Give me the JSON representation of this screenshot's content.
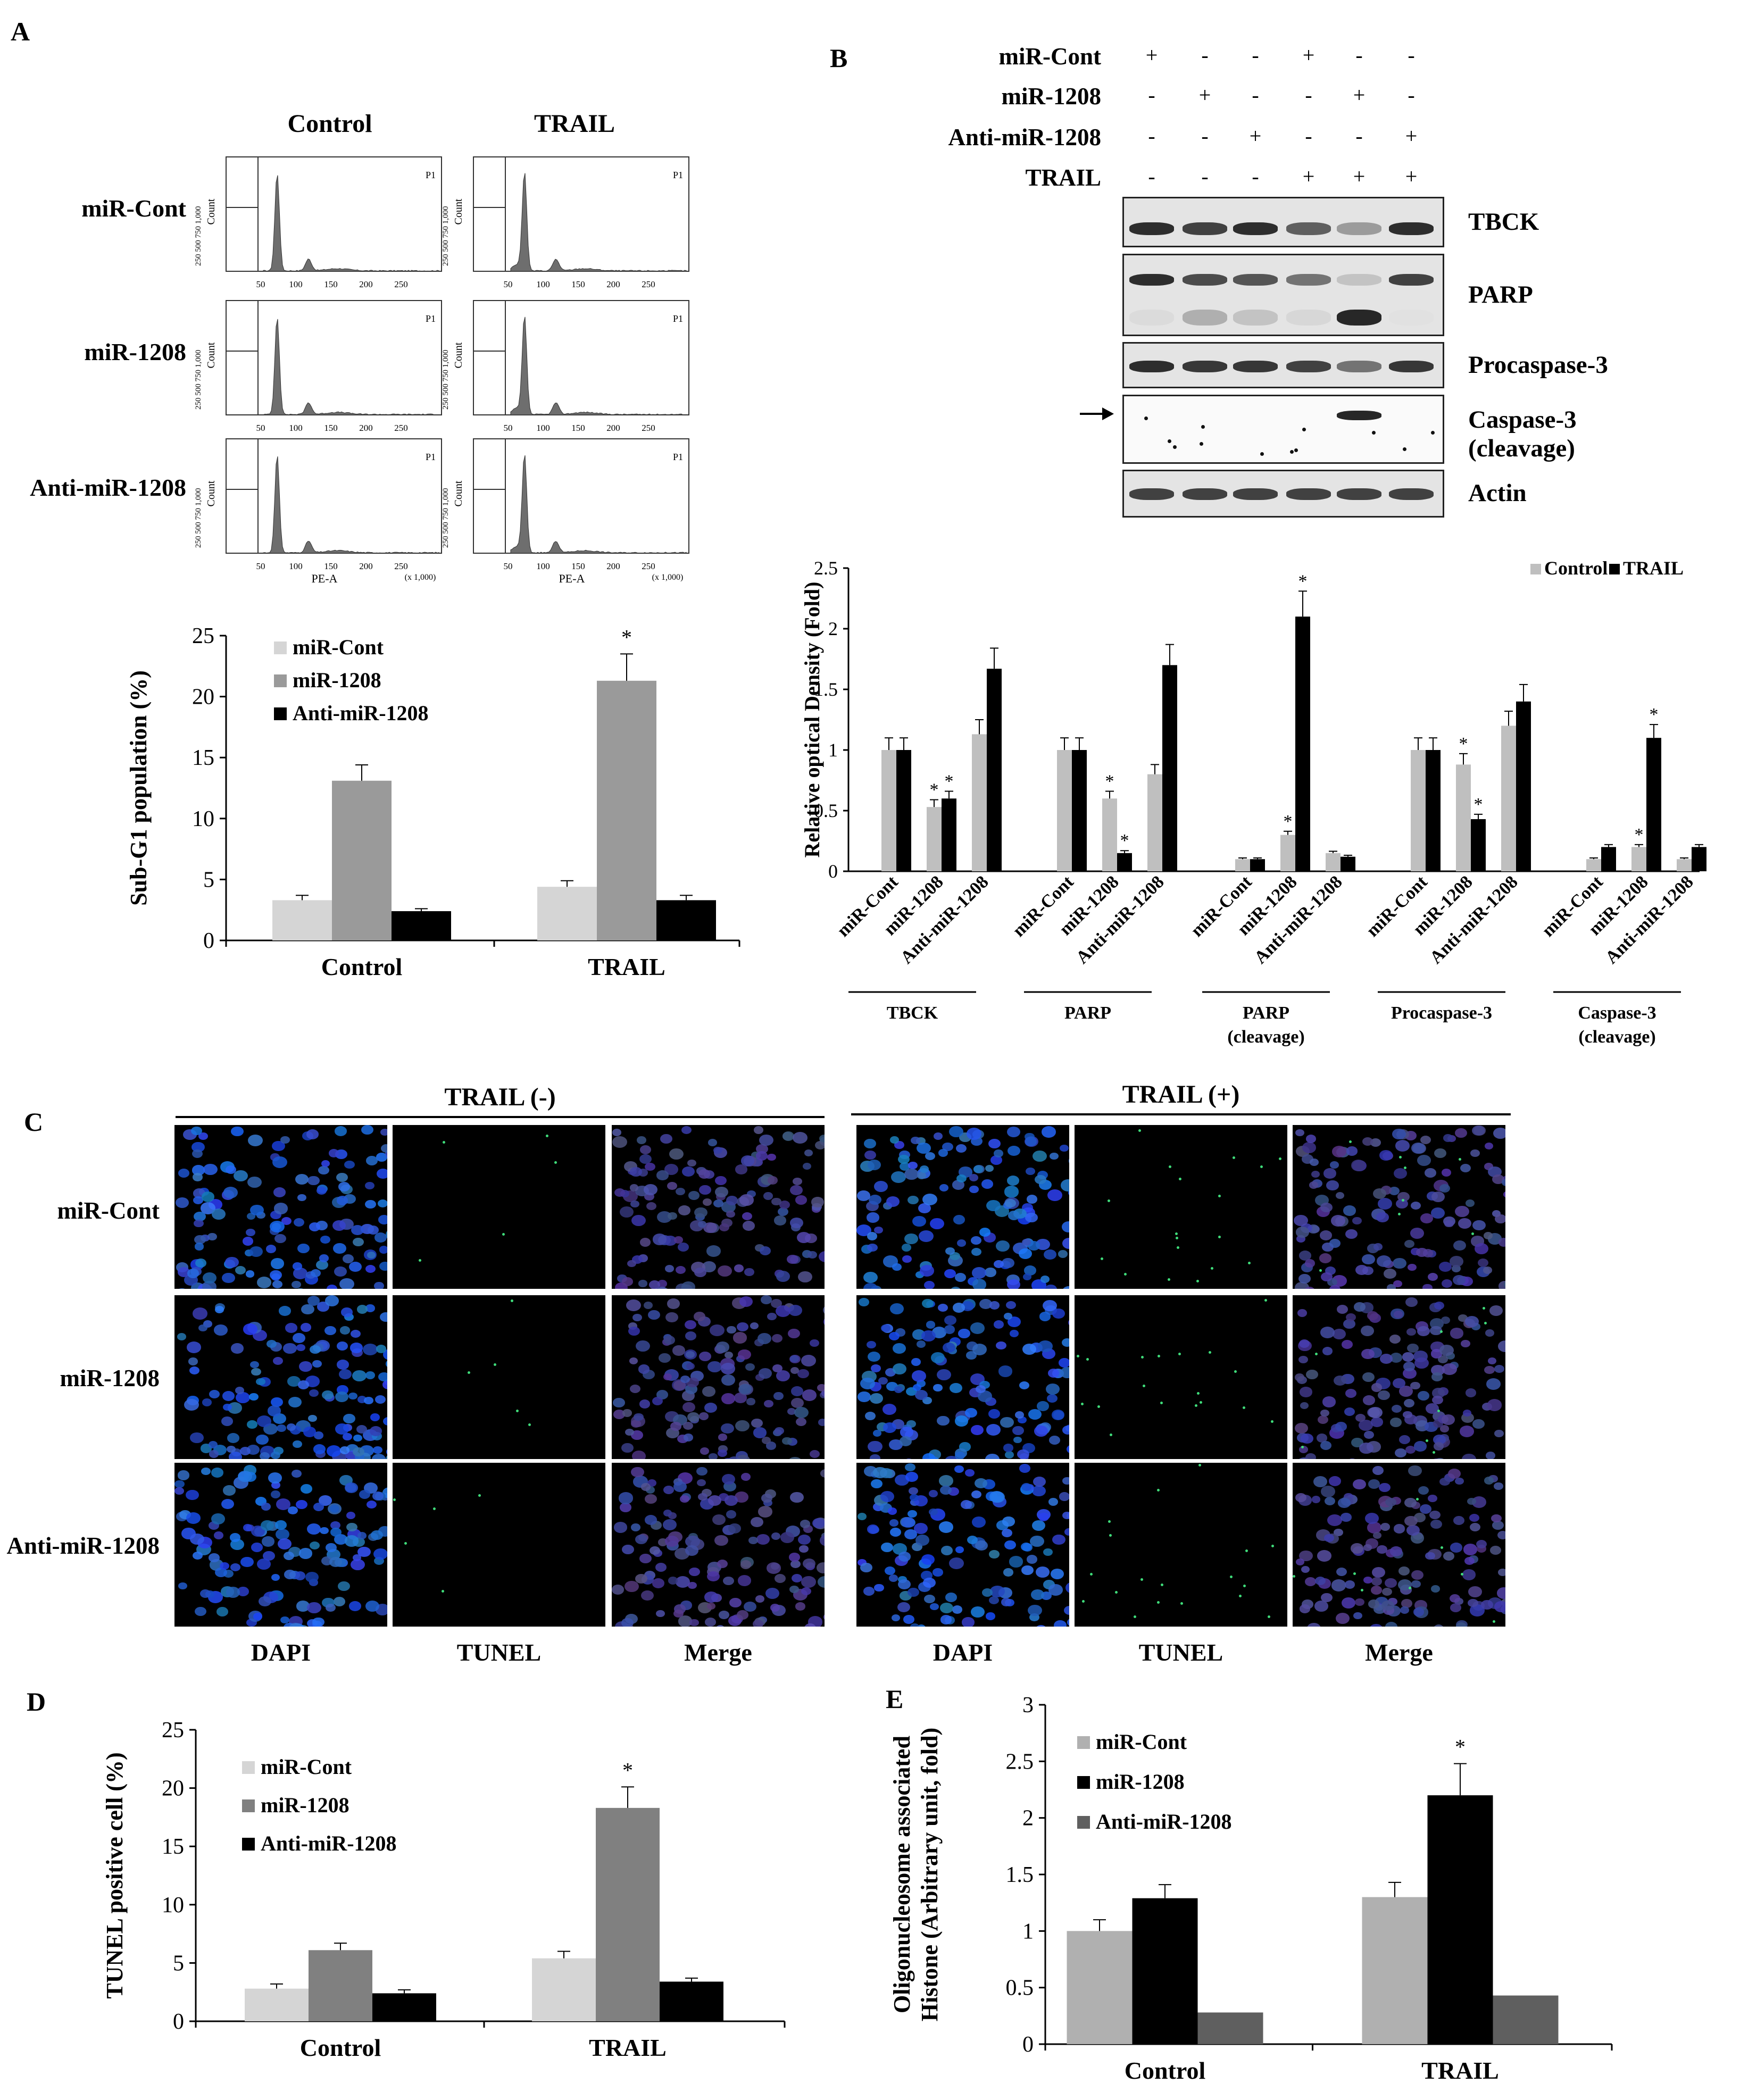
{
  "panels": {
    "A": {
      "letter": "A",
      "col_labels": [
        "Control",
        "TRAIL"
      ],
      "row_labels": [
        "miR-Cont",
        "miR-1208",
        "Anti-miR-1208"
      ],
      "histogram": {
        "gate": "P1",
        "y_label": "Count",
        "y_ticks": [
          "250",
          "500",
          "750",
          "1,000"
        ],
        "x_ticks": [
          "50",
          "100",
          "150",
          "200",
          "250"
        ],
        "x_label": "PE-A",
        "x_scale": "(x 1,000)"
      }
    },
    "B": {
      "letter": "B",
      "treat_rows": [
        {
          "label": "miR-Cont",
          "signs": [
            "+",
            "-",
            "-",
            "+",
            "-",
            "-"
          ]
        },
        {
          "label": "miR-1208",
          "signs": [
            "-",
            "+",
            "-",
            "-",
            "+",
            "-"
          ]
        },
        {
          "label": "Anti-miR-1208",
          "signs": [
            "-",
            "-",
            "+",
            "-",
            "-",
            "+"
          ]
        },
        {
          "label": "TRAIL",
          "signs": [
            "-",
            "-",
            "-",
            "+",
            "+",
            "+"
          ]
        }
      ],
      "blots": [
        {
          "label": "TBCK"
        },
        {
          "label": "PARP"
        },
        {
          "label": "Procaspase-3"
        },
        {
          "label": "Caspase-3\n(cleavage)"
        },
        {
          "label": "Actin"
        }
      ]
    },
    "C": {
      "letter": "C",
      "headers": [
        "TRAIL (-)",
        "TRAIL (+)"
      ],
      "row_labels": [
        "miR-Cont",
        "miR-1208",
        "Anti-miR-1208"
      ],
      "col_labels": [
        "DAPI",
        "TUNEL",
        "Merge",
        "DAPI",
        "TUNEL",
        "Merge"
      ]
    },
    "D": {
      "letter": "D"
    },
    "E": {
      "letter": "E"
    }
  },
  "chart_data": [
    {
      "panel": "A",
      "type": "bar",
      "categories": [
        "Control",
        "TRAIL"
      ],
      "ylabel": "Sub-G1 population (%)",
      "ylim": [
        0,
        25
      ],
      "yticks": [
        0,
        5,
        10,
        15,
        20,
        25
      ],
      "legend": "top-left",
      "series": [
        {
          "name": "miR-Cont",
          "color": "#d5d5d5",
          "values": [
            3.3,
            4.4
          ],
          "errors": [
            0.4,
            0.5
          ]
        },
        {
          "name": "miR-1208",
          "color": "#9a9a9a",
          "values": [
            13.1,
            21.3
          ],
          "errors": [
            1.3,
            2.2
          ]
        },
        {
          "name": "Anti-miR-1208",
          "color": "#000000",
          "values": [
            2.4,
            3.3
          ],
          "errors": [
            0.2,
            0.4
          ]
        }
      ],
      "annotations": [
        {
          "series": 1,
          "category": 1,
          "text": "*"
        }
      ]
    },
    {
      "panel": "B",
      "type": "bar",
      "ylabel": "Relative optical Density (Fold)",
      "ylim": [
        0,
        2.5
      ],
      "yticks": [
        "0",
        "0.5",
        "1",
        "1.5",
        "2",
        "2.5"
      ],
      "legend": "top-right",
      "series_names": [
        "Control",
        "TRAIL"
      ],
      "colors": [
        "#bfbfbf",
        "#000000"
      ],
      "groups": [
        {
          "label": "TBCK",
          "bars": [
            {
              "name": "miR-Cont",
              "values": [
                1.0,
                1.0
              ],
              "errors": [
                0.1,
                0.1
              ],
              "stars": [
                false,
                false
              ]
            },
            {
              "name": "miR-1208",
              "values": [
                0.53,
                0.6
              ],
              "errors": [
                0.06,
                0.06
              ],
              "stars": [
                true,
                true
              ]
            },
            {
              "name": "Anti-miR-1208",
              "values": [
                1.13,
                1.67
              ],
              "errors": [
                0.12,
                0.17
              ],
              "stars": [
                false,
                false
              ]
            }
          ]
        },
        {
          "label": "PARP",
          "bars": [
            {
              "name": "miR-Cont",
              "values": [
                1.0,
                1.0
              ],
              "errors": [
                0.1,
                0.1
              ],
              "stars": [
                false,
                false
              ]
            },
            {
              "name": "miR-1208",
              "values": [
                0.6,
                0.15
              ],
              "errors": [
                0.06,
                0.02
              ],
              "stars": [
                true,
                true
              ]
            },
            {
              "name": "Anti-miR-1208",
              "values": [
                0.8,
                1.7
              ],
              "errors": [
                0.08,
                0.17
              ],
              "stars": [
                false,
                false
              ]
            }
          ]
        },
        {
          "label": "PARP\n(cleavage)",
          "bars": [
            {
              "name": "miR-Cont",
              "values": [
                0.1,
                0.1
              ],
              "errors": [
                0.01,
                0.01
              ],
              "stars": [
                false,
                false
              ]
            },
            {
              "name": "miR-1208",
              "values": [
                0.3,
                2.1
              ],
              "errors": [
                0.03,
                0.21
              ],
              "stars": [
                true,
                true
              ]
            },
            {
              "name": "Anti-miR-1208",
              "values": [
                0.15,
                0.12
              ],
              "errors": [
                0.015,
                0.012
              ],
              "stars": [
                false,
                false
              ]
            }
          ]
        },
        {
          "label": "Procaspase-3",
          "bars": [
            {
              "name": "miR-Cont",
              "values": [
                1.0,
                1.0
              ],
              "errors": [
                0.1,
                0.1
              ],
              "stars": [
                false,
                false
              ]
            },
            {
              "name": "miR-1208",
              "values": [
                0.88,
                0.43
              ],
              "errors": [
                0.09,
                0.04
              ],
              "stars": [
                true,
                true
              ]
            },
            {
              "name": "Anti-miR-1208",
              "values": [
                1.2,
                1.4
              ],
              "errors": [
                0.12,
                0.14
              ],
              "stars": [
                false,
                false
              ]
            }
          ]
        },
        {
          "label": "Caspase-3\n(cleavage)",
          "bars": [
            {
              "name": "miR-Cont",
              "values": [
                0.1,
                0.2
              ],
              "errors": [
                0.01,
                0.02
              ],
              "stars": [
                false,
                false
              ]
            },
            {
              "name": "miR-1208",
              "values": [
                0.2,
                1.1
              ],
              "errors": [
                0.02,
                0.11
              ],
              "stars": [
                true,
                true
              ]
            },
            {
              "name": "Anti-miR-1208",
              "values": [
                0.1,
                0.2
              ],
              "errors": [
                0.01,
                0.02
              ],
              "stars": [
                false,
                false
              ]
            }
          ]
        }
      ]
    },
    {
      "panel": "D",
      "type": "bar",
      "categories": [
        "Control",
        "TRAIL"
      ],
      "ylabel": "TUNEL  positive cell (%)",
      "ylim": [
        0,
        25
      ],
      "yticks": [
        0,
        5,
        10,
        15,
        20,
        25
      ],
      "legend": "top-left",
      "series": [
        {
          "name": "miR-Cont",
          "color": "#d5d5d5",
          "values": [
            2.8,
            5.4
          ],
          "errors": [
            0.4,
            0.6
          ]
        },
        {
          "name": "miR-1208",
          "color": "#808080",
          "values": [
            6.1,
            18.3
          ],
          "errors": [
            0.6,
            1.8
          ]
        },
        {
          "name": "Anti-miR-1208",
          "color": "#000000",
          "values": [
            2.4,
            3.4
          ],
          "errors": [
            0.3,
            0.3
          ]
        }
      ],
      "annotations": [
        {
          "series": 1,
          "category": 1,
          "text": "*"
        }
      ]
    },
    {
      "panel": "E",
      "type": "bar",
      "categories": [
        "Control",
        "TRAIL"
      ],
      "ylabel": "Oligonucleosome associated\nHistone (Arbitrary unit, fold)",
      "ylim": [
        0,
        3
      ],
      "yticks": [
        "0",
        "0.5",
        "1",
        "1.5",
        "2",
        "2.5",
        "3"
      ],
      "legend": "top-left",
      "series": [
        {
          "name": "miR-Cont",
          "color": "#b0b0b0",
          "values": [
            1.0,
            1.3
          ],
          "errors": [
            0.1,
            0.13
          ]
        },
        {
          "name": "miR-1208",
          "color": "#000000",
          "values": [
            1.29,
            2.2
          ],
          "errors": [
            0.12,
            0.28
          ]
        },
        {
          "name": "Anti-miR-1208",
          "color": "#5f5f5f",
          "values": [
            0.28,
            0.43
          ],
          "errors": [
            0,
            0
          ]
        }
      ],
      "annotations": [
        {
          "series": 1,
          "category": 1,
          "text": "*"
        }
      ]
    }
  ]
}
